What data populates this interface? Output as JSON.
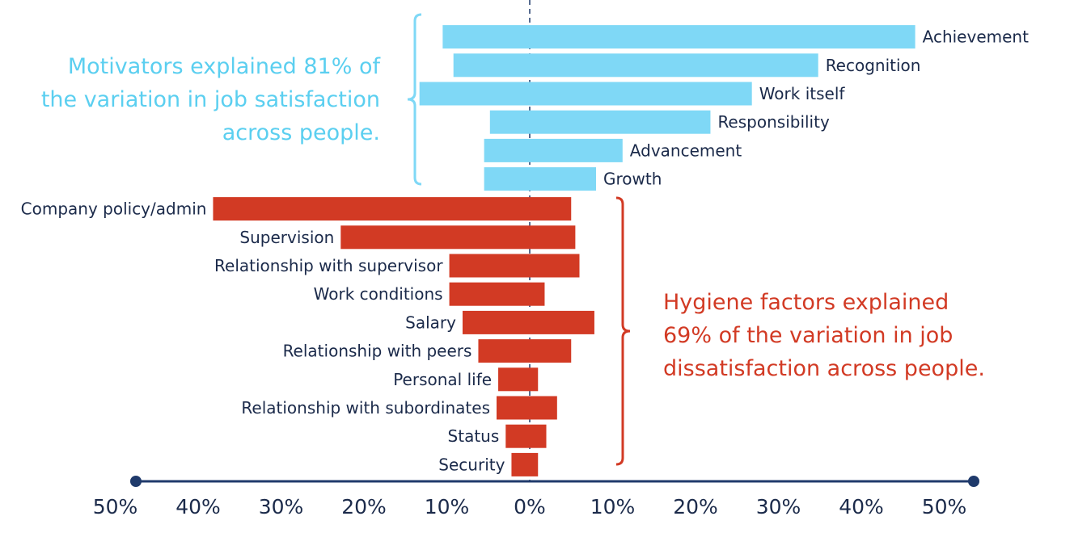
{
  "chart_data": {
    "type": "bar",
    "orientation": "horizontal-diverging",
    "series": [
      {
        "name": "Motivators",
        "color": "#7FD8F6",
        "categories": [
          "Achievement",
          "Recognition",
          "Work itself",
          "Responsibility",
          "Advancement",
          "Growth"
        ],
        "values": [
          [
            -10.5,
            46.5
          ],
          [
            -9.2,
            34.8
          ],
          [
            -13.3,
            26.8
          ],
          [
            -4.8,
            21.8
          ],
          [
            -5.5,
            11.2
          ],
          [
            -5.5,
            8.0
          ]
        ]
      },
      {
        "name": "Hygiene factors",
        "color": "#D23A24",
        "categories": [
          "Company policy/admin",
          "Supervision",
          "Relationship with supervisor",
          "Work conditions",
          "Salary",
          "Relationship with peers",
          "Personal life",
          "Relationship with subordinates",
          "Status",
          "Security"
        ],
        "values": [
          [
            -38.2,
            5.0
          ],
          [
            -22.8,
            5.5
          ],
          [
            -9.7,
            6.0
          ],
          [
            -9.7,
            1.8
          ],
          [
            -8.1,
            7.8
          ],
          [
            -6.2,
            5.0
          ],
          [
            -3.8,
            1.0
          ],
          [
            -4.0,
            3.3
          ],
          [
            -2.9,
            2.0
          ],
          [
            -2.2,
            1.0
          ]
        ]
      }
    ],
    "xlim": [
      -50,
      50
    ],
    "xticks": [
      "50%",
      "40%",
      "30%",
      "20%",
      "10%",
      "0%",
      "10%",
      "20%",
      "30%",
      "40%",
      "50%"
    ],
    "title": "",
    "xlabel": "",
    "ylabel": "",
    "grid": false,
    "legend": "none",
    "axis_color": "#1F3A6B",
    "label_color": "#1B2A4A"
  },
  "annotations": {
    "motivators": {
      "lines": [
        "Motivators explained 81% of",
        "the variation in job satisfaction",
        "across people."
      ],
      "color": "#5BCFF0"
    },
    "hygiene": {
      "lines": [
        "Hygiene factors explained",
        "69% of the variation in job",
        "dissatisfaction across people."
      ],
      "color": "#D23A24"
    }
  }
}
